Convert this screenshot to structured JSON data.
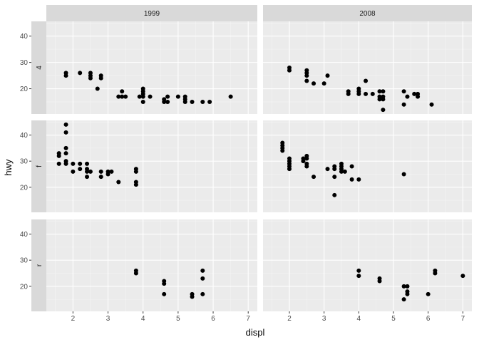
{
  "chart_data": {
    "type": "scatter",
    "xlabel": "displ",
    "ylabel": "hwy",
    "xlim": [
      1.24,
      7.26
    ],
    "ylim": [
      10.4,
      45.6
    ],
    "x_ticks": [
      2,
      3,
      4,
      5,
      6,
      7
    ],
    "y_ticks": [
      20,
      30,
      40
    ],
    "grid": true,
    "facet_cols": [
      "1999",
      "2008"
    ],
    "facet_rows": [
      "4",
      "f",
      "r"
    ],
    "point_color": "#000000",
    "panels": [
      {
        "row": "4",
        "col": "1999",
        "points": [
          [
            1.8,
            26
          ],
          [
            1.8,
            25
          ],
          [
            2.2,
            26
          ],
          [
            2.5,
            26
          ],
          [
            2.5,
            25
          ],
          [
            2.5,
            24
          ],
          [
            2.7,
            20
          ],
          [
            2.8,
            25
          ],
          [
            2.8,
            24
          ],
          [
            3.3,
            17
          ],
          [
            3.4,
            17
          ],
          [
            3.4,
            19
          ],
          [
            3.5,
            17
          ],
          [
            3.9,
            17
          ],
          [
            4.0,
            17
          ],
          [
            4.0,
            19
          ],
          [
            4.0,
            20
          ],
          [
            4.0,
            18
          ],
          [
            4.0,
            15
          ],
          [
            4.2,
            17
          ],
          [
            4.6,
            16
          ],
          [
            4.6,
            15
          ],
          [
            4.7,
            17
          ],
          [
            4.7,
            15
          ],
          [
            5.0,
            17
          ],
          [
            5.2,
            17
          ],
          [
            5.2,
            16
          ],
          [
            5.2,
            15
          ],
          [
            5.4,
            15
          ],
          [
            5.7,
            15
          ],
          [
            5.9,
            15
          ],
          [
            6.5,
            17
          ]
        ]
      },
      {
        "row": "4",
        "col": "2008",
        "points": [
          [
            2.0,
            28
          ],
          [
            2.0,
            27
          ],
          [
            2.5,
            27
          ],
          [
            2.5,
            26
          ],
          [
            2.5,
            25
          ],
          [
            2.5,
            23
          ],
          [
            2.7,
            22
          ],
          [
            3.0,
            22
          ],
          [
            3.1,
            25
          ],
          [
            3.7,
            19
          ],
          [
            3.7,
            18
          ],
          [
            4.0,
            20
          ],
          [
            4.0,
            19
          ],
          [
            4.0,
            18
          ],
          [
            4.2,
            23
          ],
          [
            4.2,
            18
          ],
          [
            4.4,
            18
          ],
          [
            4.6,
            19
          ],
          [
            4.6,
            17
          ],
          [
            4.6,
            16
          ],
          [
            4.7,
            19
          ],
          [
            4.7,
            17
          ],
          [
            4.7,
            12
          ],
          [
            4.7,
            16
          ],
          [
            5.3,
            19
          ],
          [
            5.3,
            14
          ],
          [
            5.4,
            17
          ],
          [
            5.6,
            18
          ],
          [
            5.7,
            18
          ],
          [
            5.7,
            17
          ],
          [
            6.1,
            14
          ]
        ]
      },
      {
        "row": "f",
        "col": "1999",
        "points": [
          [
            1.6,
            33
          ],
          [
            1.6,
            32
          ],
          [
            1.6,
            29
          ],
          [
            1.8,
            44
          ],
          [
            1.8,
            41
          ],
          [
            1.8,
            35
          ],
          [
            1.8,
            33
          ],
          [
            1.8,
            30
          ],
          [
            1.8,
            29
          ],
          [
            2.0,
            29
          ],
          [
            2.0,
            26
          ],
          [
            2.2,
            29
          ],
          [
            2.2,
            27
          ],
          [
            2.4,
            29
          ],
          [
            2.4,
            27
          ],
          [
            2.4,
            26
          ],
          [
            2.4,
            24
          ],
          [
            2.5,
            26
          ],
          [
            2.8,
            26
          ],
          [
            2.8,
            24
          ],
          [
            3.0,
            26
          ],
          [
            3.0,
            25
          ],
          [
            3.1,
            26
          ],
          [
            3.3,
            22
          ],
          [
            3.8,
            27
          ],
          [
            3.8,
            26
          ],
          [
            3.8,
            22
          ],
          [
            3.8,
            21
          ]
        ]
      },
      {
        "row": "f",
        "col": "2008",
        "points": [
          [
            1.8,
            37
          ],
          [
            1.8,
            36
          ],
          [
            1.8,
            35
          ],
          [
            1.8,
            34
          ],
          [
            2.0,
            31
          ],
          [
            2.0,
            30
          ],
          [
            2.0,
            29
          ],
          [
            2.0,
            28
          ],
          [
            2.0,
            27
          ],
          [
            2.4,
            31
          ],
          [
            2.4,
            30
          ],
          [
            2.5,
            32
          ],
          [
            2.5,
            31
          ],
          [
            2.5,
            29
          ],
          [
            2.5,
            28
          ],
          [
            2.7,
            24
          ],
          [
            3.1,
            27
          ],
          [
            3.3,
            28
          ],
          [
            3.3,
            27
          ],
          [
            3.3,
            24
          ],
          [
            3.3,
            17
          ],
          [
            3.5,
            29
          ],
          [
            3.5,
            28
          ],
          [
            3.5,
            27
          ],
          [
            3.5,
            26
          ],
          [
            3.6,
            26
          ],
          [
            3.8,
            28
          ],
          [
            3.8,
            23
          ],
          [
            4.0,
            23
          ],
          [
            5.3,
            25
          ]
        ]
      },
      {
        "row": "r",
        "col": "1999",
        "points": [
          [
            3.8,
            26
          ],
          [
            3.8,
            25
          ],
          [
            4.6,
            22
          ],
          [
            4.6,
            21
          ],
          [
            4.6,
            17
          ],
          [
            5.4,
            17
          ],
          [
            5.4,
            16
          ],
          [
            5.7,
            26
          ],
          [
            5.7,
            23
          ],
          [
            5.7,
            17
          ]
        ]
      },
      {
        "row": "r",
        "col": "2008",
        "points": [
          [
            4.0,
            26
          ],
          [
            4.0,
            24
          ],
          [
            4.6,
            23
          ],
          [
            4.6,
            22
          ],
          [
            5.3,
            20
          ],
          [
            5.3,
            15
          ],
          [
            5.4,
            20
          ],
          [
            5.4,
            18
          ],
          [
            5.4,
            17
          ],
          [
            6.0,
            17
          ],
          [
            6.2,
            26
          ],
          [
            6.2,
            25
          ],
          [
            7.0,
            24
          ]
        ]
      }
    ]
  }
}
